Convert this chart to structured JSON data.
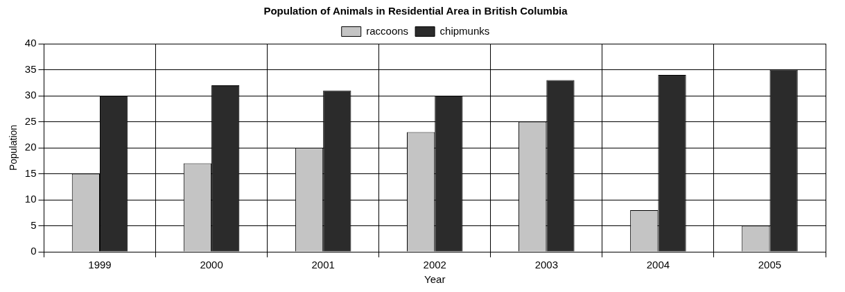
{
  "chart_data": {
    "type": "bar",
    "title": "Population of Animals in Residential Area in British Columbia",
    "xlabel": "Year",
    "ylabel": "Population",
    "categories": [
      "1999",
      "2000",
      "2001",
      "2002",
      "2003",
      "2004",
      "2005"
    ],
    "series": [
      {
        "name": "raccoons",
        "color": "#c4c4c4",
        "values": [
          15,
          17,
          20,
          23,
          25,
          8,
          5
        ]
      },
      {
        "name": "chipmunks",
        "color": "#2b2b2b",
        "values": [
          30,
          32,
          31,
          30,
          33,
          34,
          35
        ]
      }
    ],
    "ylim": [
      0,
      40
    ],
    "yticks": [
      0,
      5,
      10,
      15,
      20,
      25,
      30,
      35,
      40
    ],
    "grid": true,
    "legend": "top"
  }
}
